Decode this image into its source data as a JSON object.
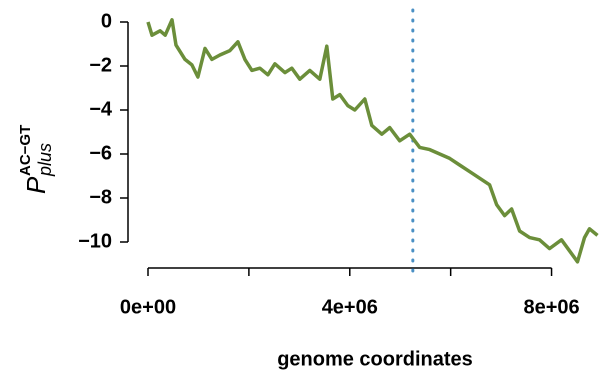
{
  "chart_data": {
    "type": "line",
    "xlabel": "genome coordinates",
    "ylabel": {
      "main": "P",
      "sub": "plus",
      "sup": "AC−GT"
    },
    "x": [
      0,
      80000,
      240000,
      340000,
      475000,
      555000,
      733000,
      871000,
      990000,
      1129000,
      1267000,
      1426000,
      1624000,
      1782000,
      1921000,
      2059000,
      2218000,
      2376000,
      2515000,
      2713000,
      2851000,
      3010000,
      3208000,
      3406000,
      3545000,
      3663000,
      3802000,
      3960000,
      4099000,
      4297000,
      4436000,
      4634000,
      4792000,
      4990000,
      5188000,
      5386000,
      5584000,
      5782000,
      5980000,
      6178000,
      6376000,
      6574000,
      6772000,
      6911000,
      7069000,
      7208000,
      7366000,
      7564000,
      7762000,
      7960000,
      8198000,
      8356000,
      8515000,
      8653000,
      8752000,
      8911000
    ],
    "values": [
      0,
      -0.6,
      -0.4,
      -0.6,
      0.1,
      -1.05,
      -1.7,
      -1.95,
      -2.5,
      -1.2,
      -1.7,
      -1.5,
      -1.3,
      -0.9,
      -1.7,
      -2.2,
      -2.1,
      -2.4,
      -1.9,
      -2.3,
      -2.1,
      -2.6,
      -2.2,
      -2.6,
      -1.1,
      -3.5,
      -3.3,
      -3.8,
      -4.0,
      -3.5,
      -4.7,
      -5.1,
      -4.8,
      -5.4,
      -5.1,
      -5.7,
      -5.8,
      -6.0,
      -6.2,
      -6.5,
      -6.8,
      -7.1,
      -7.4,
      -8.3,
      -8.8,
      -8.5,
      -9.5,
      -9.8,
      -9.9,
      -10.3,
      -9.9,
      -10.4,
      -10.9,
      -9.8,
      -9.4,
      -9.7
    ],
    "color": "#6b8e3a",
    "vline": 5250000,
    "vline_color": "#4a90c4",
    "xlim": [
      0,
      9000000
    ],
    "ylim": [
      -10,
      0
    ],
    "xticks": [
      {
        "value": 0,
        "label": "0e+00"
      },
      {
        "value": 2000000,
        "label": null
      },
      {
        "value": 4000000,
        "label": "4e+06"
      },
      {
        "value": 6000000,
        "label": null
      },
      {
        "value": 8000000,
        "label": "8e+06"
      }
    ],
    "yticks": [
      {
        "value": 0,
        "label": "0"
      },
      {
        "value": -2,
        "label": "−2"
      },
      {
        "value": -4,
        "label": "−4"
      },
      {
        "value": -6,
        "label": "−6"
      },
      {
        "value": -8,
        "label": "−8"
      },
      {
        "value": -10,
        "label": "−10"
      }
    ]
  }
}
